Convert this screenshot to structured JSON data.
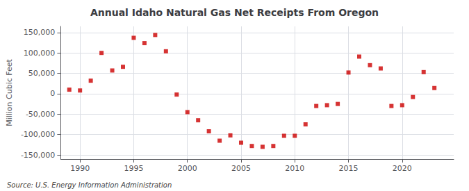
{
  "chart_data": {
    "type": "scatter",
    "title": "Annual Idaho Natural Gas Net Receipts From Oregon",
    "ylabel": "Million Cubic Feet",
    "annotation": "Source: U.S. Energy Information Administration",
    "x": [
      1989,
      1990,
      1991,
      1992,
      1993,
      1994,
      1995,
      1996,
      1997,
      1998,
      1999,
      2000,
      2001,
      2002,
      2003,
      2004,
      2005,
      2006,
      2007,
      2008,
      2009,
      2010,
      2011,
      2012,
      2013,
      2014,
      2015,
      2016,
      2017,
      2018,
      2019,
      2020,
      2021,
      2022,
      2023
    ],
    "values": [
      10000,
      8000,
      32000,
      100000,
      57000,
      66000,
      137000,
      124000,
      144000,
      104000,
      -2000,
      -45000,
      -65000,
      -92000,
      -115000,
      -102000,
      -120000,
      -128000,
      -130000,
      -128000,
      -103000,
      -103000,
      -75000,
      -30000,
      -28000,
      -25000,
      52000,
      91000,
      70000,
      62000,
      -30000,
      -28000,
      -8000,
      53000,
      14000
    ],
    "color": "#cc0000",
    "marker": "square",
    "xlim": [
      1988.2,
      2024.8
    ],
    "xticks": [
      1990,
      1995,
      2000,
      2005,
      2010,
      2015,
      2020
    ],
    "ylim": [
      -160000,
      165000
    ],
    "yticks": [
      {
        "value": -150000,
        "label": "-150,000"
      },
      {
        "value": -100000,
        "label": "-100,000"
      },
      {
        "value": -50000,
        "label": "-50,000"
      },
      0,
      {
        "value": 50000,
        "label": "50,000"
      },
      {
        "value": 100000,
        "label": "100,000"
      },
      {
        "value": 150000,
        "label": "150,000"
      }
    ],
    "grid": true
  }
}
